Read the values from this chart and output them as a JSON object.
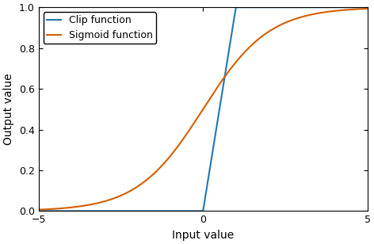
{
  "xlabel": "Input value",
  "ylabel": "Output value",
  "xlim": [
    -5,
    5
  ],
  "ylim": [
    -0.02,
    1.02
  ],
  "ylim_display": [
    0,
    1
  ],
  "xticks": [
    -5,
    0,
    5
  ],
  "yticks": [
    0,
    0.2,
    0.4,
    0.6,
    0.8,
    1.0
  ],
  "clip_label": "Clip function",
  "sigmoid_label": "Sigmoid function",
  "clip_color": "#1f77b4",
  "sigmoid_color": "#d55e00",
  "legend_loc": "upper left",
  "linewidth": 1.5,
  "figsize": [
    4.72,
    3.08
  ],
  "dpi": 100,
  "legend_fontsize": 9,
  "tick_fontsize": 9,
  "label_fontsize": 10
}
